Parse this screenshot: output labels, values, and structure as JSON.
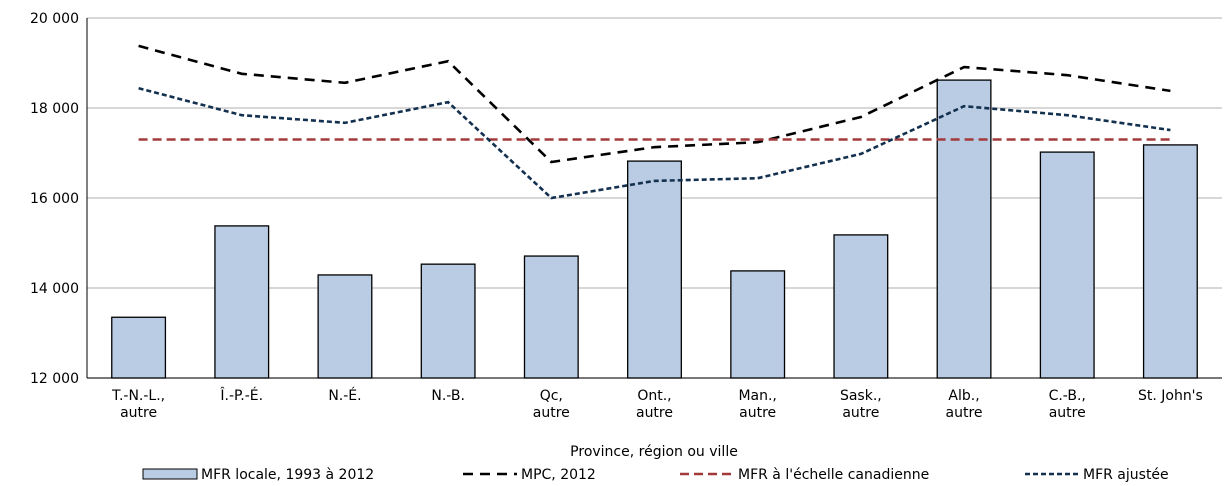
{
  "chart_data": {
    "type": "bar",
    "x_label": "Province, région ou ville",
    "categories": [
      [
        "T.-N.-L.,",
        "autre"
      ],
      [
        "Î.-P.-É."
      ],
      [
        "N.-É."
      ],
      [
        "N.-B."
      ],
      [
        "Qc,",
        "autre"
      ],
      [
        "Ont.,",
        "autre"
      ],
      [
        "Man.,",
        "autre"
      ],
      [
        "Sask.,",
        "autre"
      ],
      [
        "Alb.,",
        "autre"
      ],
      [
        "C.-B.,",
        "autre"
      ],
      [
        "St. John's"
      ]
    ],
    "ylim": [
      12000,
      20000
    ],
    "yticks": [
      {
        "value": 12000,
        "label": "12 000"
      },
      {
        "value": 14000,
        "label": "14 000"
      },
      {
        "value": 16000,
        "label": "16 000"
      },
      {
        "value": 18000,
        "label": "18 000"
      },
      {
        "value": 20000,
        "label": "20 000"
      }
    ],
    "grid": true,
    "series": [
      {
        "name": "MFR locale, 1993 à 2012",
        "type": "bar",
        "color": "#b9cce4",
        "values": [
          13350,
          15380,
          14290,
          14530,
          14710,
          16820,
          14380,
          15180,
          18620,
          17020,
          17180
        ]
      },
      {
        "name": "MPC, 2012",
        "type": "line",
        "dash": "10,7",
        "color": "#000000",
        "values": [
          19380,
          18760,
          18560,
          19040,
          16800,
          17130,
          17240,
          17800,
          18910,
          18730,
          18380
        ]
      },
      {
        "name": "MFR à l'échelle canadienne",
        "type": "line",
        "dash": "9,5",
        "color": "#a33a3a",
        "values": [
          17300,
          17300,
          17300,
          17300,
          17300,
          17300,
          17300,
          17300,
          17300,
          17300,
          17300
        ]
      },
      {
        "name": "MFR ajustée",
        "type": "line",
        "dash": "5,3",
        "color": "#13304f",
        "values": [
          18440,
          17840,
          17670,
          18130,
          16000,
          16380,
          16440,
          16980,
          18040,
          17840,
          17510
        ]
      }
    ]
  }
}
